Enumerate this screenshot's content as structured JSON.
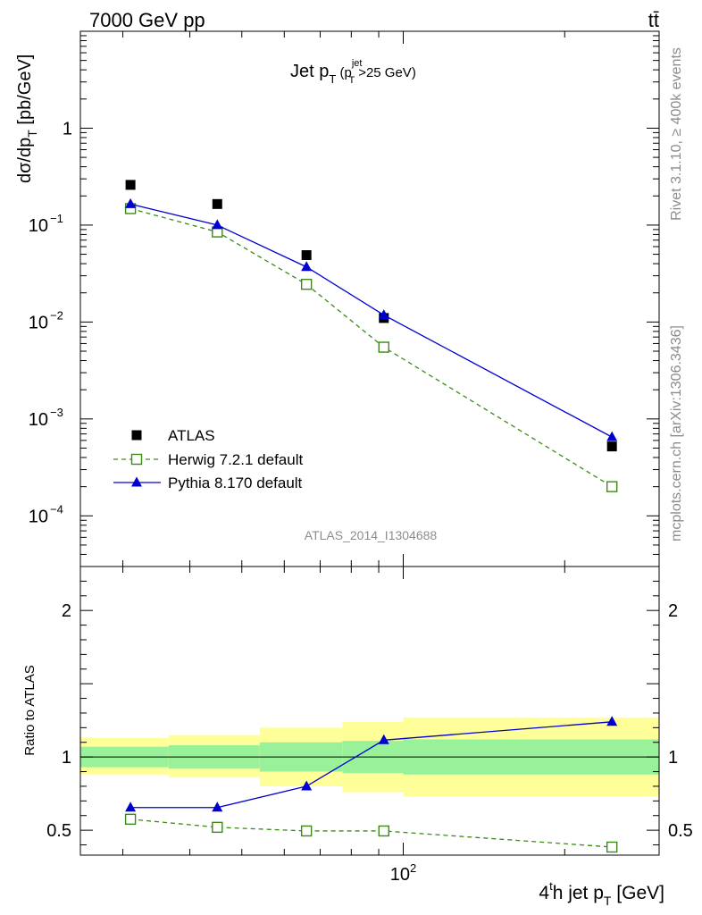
{
  "header": {
    "energy": "7000 GeV pp",
    "process": "tt̄"
  },
  "side": {
    "rivet": "Rivet 3.1.10, ≥ 400k events",
    "mcplots": "mcplots.cern.ch [arXiv:1306.3436]"
  },
  "analysis_id": "ATLAS_2014_I1304688",
  "chart_data": [
    {
      "type": "scatter",
      "panel": "main",
      "title": {
        "base": "Jet p",
        "sub": "T",
        "paren_open": " (p",
        "paren_sup": "jet",
        "paren_sub": "T",
        "paren_rest": ">25 GeV)"
      },
      "ylabel": "dσ/dp",
      "ylabel_sub": "T",
      "ylabel_rest": " [pb/GeV]",
      "yscale": "log",
      "ylim": [
        3e-05,
        10
      ],
      "xscale": "log",
      "xlim": [
        25,
        300
      ],
      "yticks": [
        {
          "base": "",
          "exp": "",
          "text": "1"
        },
        {
          "base": "10",
          "exp": "−1"
        },
        {
          "base": "10",
          "exp": "−2"
        },
        {
          "base": "10",
          "exp": "−3"
        },
        {
          "base": "10",
          "exp": "−4"
        }
      ],
      "ytick_values": [
        1,
        0.1,
        0.01,
        0.001,
        0.0001
      ],
      "legend_position": "lower-left",
      "series": [
        {
          "name": "ATLAS",
          "marker": "filled-square",
          "color": "#000000",
          "x": [
            31,
            45,
            66,
            92,
            245
          ],
          "y": [
            0.26,
            0.165,
            0.049,
            0.011,
            0.00052
          ]
        },
        {
          "name": "Herwig 7.2.1 default",
          "marker": "open-square",
          "line": "dashed",
          "color": "#3a8a16",
          "x": [
            31,
            45,
            66,
            92,
            245
          ],
          "y": [
            0.148,
            0.085,
            0.0245,
            0.0055,
            0.0002
          ]
        },
        {
          "name": "Pythia 8.170 default",
          "marker": "filled-triangle",
          "line": "solid",
          "color": "#0000d0",
          "x": [
            31,
            45,
            66,
            92,
            245
          ],
          "y": [
            0.165,
            0.1,
            0.037,
            0.0118,
            0.00065
          ]
        }
      ]
    },
    {
      "type": "scatter",
      "panel": "ratio",
      "ylabel": "Ratio to ATLAS",
      "yscale": "linear",
      "ylim": [
        0.33,
        2.3
      ],
      "xscale": "log",
      "xlim": [
        25,
        300
      ],
      "xlabel": {
        "pre": "4",
        "sup": "t",
        "mid": "h jet p",
        "sub": "T",
        "post": " [GeV]"
      },
      "xticks": [
        {
          "value": 100,
          "base": "10",
          "exp": "2"
        }
      ],
      "yticks": [
        {
          "value": 2,
          "text": "2"
        },
        {
          "value": 1,
          "text": "1"
        },
        {
          "value": 0.5,
          "text": "0.5"
        }
      ],
      "bands": [
        {
          "x0": 25,
          "x1": 36.5,
          "stat_lo": 0.93,
          "stat_hi": 1.07,
          "tot_lo": 0.88,
          "tot_hi": 1.13
        },
        {
          "x0": 36.5,
          "x1": 54,
          "stat_lo": 0.92,
          "stat_hi": 1.08,
          "tot_lo": 0.86,
          "tot_hi": 1.15
        },
        {
          "x0": 54,
          "x1": 77,
          "stat_lo": 0.9,
          "stat_hi": 1.1,
          "tot_lo": 0.8,
          "tot_hi": 1.2
        },
        {
          "x0": 77,
          "x1": 100,
          "stat_lo": 0.89,
          "stat_hi": 1.11,
          "tot_lo": 0.76,
          "tot_hi": 1.24
        },
        {
          "x0": 100,
          "x1": 300,
          "stat_lo": 0.88,
          "stat_hi": 1.12,
          "tot_lo": 0.73,
          "tot_hi": 1.27
        }
      ],
      "band_colors": {
        "stat": "#99f299",
        "total": "#ffff99"
      },
      "series": [
        {
          "name": "Herwig 7.2.1 default",
          "marker": "open-square",
          "line": "dashed",
          "color": "#3a8a16",
          "x": [
            31,
            45,
            66,
            92,
            245
          ],
          "y": [
            0.575,
            0.52,
            0.495,
            0.495,
            0.385
          ]
        },
        {
          "name": "Pythia 8.170 default",
          "marker": "filled-triangle",
          "line": "solid",
          "color": "#0000d0",
          "x": [
            31,
            45,
            66,
            92,
            245
          ],
          "y": [
            0.655,
            0.655,
            0.8,
            1.115,
            1.24
          ]
        }
      ]
    }
  ]
}
